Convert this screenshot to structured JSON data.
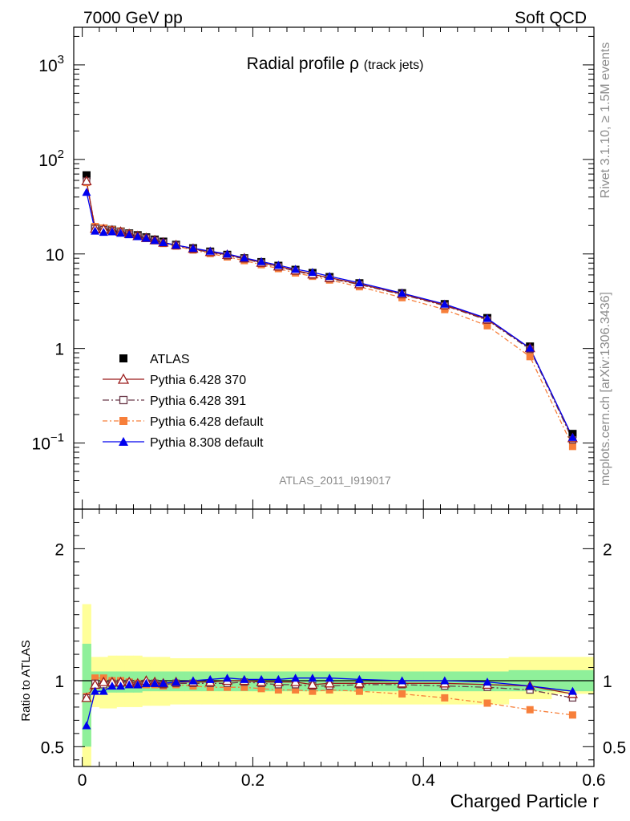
{
  "header": {
    "left": "7000 GeV pp",
    "right": "Soft QCD"
  },
  "side_text": {
    "rivet": "Rivet 3.1.10, ≥ 1.5M events",
    "mcplots": "mcplots.cern.ch [arXiv:1306.3436]"
  },
  "watermark": "ATLAS_2011_I919017",
  "colors": {
    "atlas": "#000000",
    "p370": "#9b1b1b",
    "p391": "#6b3a4a",
    "pdefault": "#f77f3a",
    "p8": "#0000ee",
    "band_inner": "#8ff09a",
    "band_outer": "#ffff99"
  },
  "chart_data": [
    {
      "type": "line",
      "title": "Radial profile",
      "title_symbol": "ρ",
      "title_suffix": "(track jets)",
      "yscale": "log",
      "ylim": [
        0.02,
        2500
      ],
      "xlim": [
        -0.01,
        0.6
      ],
      "ytick_labels": [
        {
          "value": 1000,
          "mant": "10",
          "exp": "3"
        },
        {
          "value": 100,
          "mant": "10",
          "exp": "2"
        },
        {
          "value": 10,
          "mant": "10",
          "exp": ""
        },
        {
          "value": 1,
          "mant": "1",
          "exp": ""
        },
        {
          "value": 0.1,
          "mant": "10",
          "exp": "−1"
        }
      ],
      "legend_position": "lower-left",
      "x": [
        0.005,
        0.015,
        0.025,
        0.035,
        0.045,
        0.055,
        0.065,
        0.075,
        0.085,
        0.095,
        0.11,
        0.13,
        0.15,
        0.17,
        0.19,
        0.21,
        0.23,
        0.25,
        0.27,
        0.29,
        0.325,
        0.375,
        0.425,
        0.475,
        0.525,
        0.575
      ],
      "series": [
        {
          "name": "ATLAS",
          "key": "atlas",
          "values": [
            68,
            19,
            18.5,
            18,
            17.3,
            16.5,
            15.8,
            15,
            14.2,
            13.5,
            12.5,
            11.5,
            10.6,
            9.8,
            9,
            8.2,
            7.5,
            6.8,
            6.3,
            5.7,
            4.9,
            3.85,
            2.95,
            2.1,
            1.05,
            0.125
          ]
        },
        {
          "name": "Pythia 6.428 370",
          "key": "p370",
          "values": [
            59,
            18.5,
            18.3,
            17.8,
            17.2,
            16.3,
            15.5,
            14.8,
            14,
            13.2,
            12.4,
            11.4,
            10.5,
            9.8,
            9,
            8.1,
            7.4,
            6.7,
            6.1,
            5.6,
            4.8,
            3.78,
            2.88,
            2.03,
            1.01,
            0.113
          ]
        },
        {
          "name": "Pythia 6.428 391",
          "key": "p391",
          "values": [
            59,
            18.6,
            18,
            17.6,
            17,
            16.2,
            15.4,
            14.7,
            13.9,
            13.1,
            12.3,
            11.2,
            10.4,
            9.6,
            8.9,
            8,
            7.3,
            6.6,
            6,
            5.5,
            4.75,
            3.72,
            2.84,
            2.0,
            0.98,
            0.108
          ]
        },
        {
          "name": "Pythia 6.428 default",
          "key": "pdefault",
          "values": [
            57,
            19.5,
            18.8,
            18,
            17.4,
            16.4,
            15.5,
            14.6,
            13.8,
            12.9,
            12.1,
            11,
            10.1,
            9.3,
            8.5,
            7.7,
            7,
            6.3,
            5.8,
            5.3,
            4.5,
            3.45,
            2.58,
            1.74,
            0.82,
            0.092
          ]
        },
        {
          "name": "Pythia 8.308 default",
          "key": "p8",
          "values": [
            45,
            17.5,
            17,
            17.2,
            16.6,
            16,
            15.3,
            14.7,
            13.9,
            13.2,
            12.4,
            11.5,
            10.7,
            10,
            9.1,
            8.3,
            7.6,
            6.9,
            6.4,
            5.8,
            4.95,
            3.85,
            2.95,
            2.08,
            1.01,
            0.115
          ]
        }
      ]
    },
    {
      "type": "line",
      "ylabel": "Ratio to ATLAS",
      "xlabel": "Charged Particle r",
      "ylim": [
        0.35,
        2.3
      ],
      "xlim": [
        -0.01,
        0.6
      ],
      "xticks": [
        0,
        0.2,
        0.4,
        0.6
      ],
      "xtick_labels": [
        "0",
        "0.2",
        "0.4",
        "0.6"
      ],
      "yticks": [
        0.5,
        1,
        2
      ],
      "ytick_labels": [
        "0.5",
        "1",
        "2"
      ],
      "band_inner": {
        "lower": [
          0.5,
          0.91,
          0.91,
          0.91,
          0.91,
          0.91,
          0.91,
          0.92,
          0.92,
          0.92,
          0.92,
          0.92,
          0.92,
          0.92,
          0.92,
          0.92,
          0.92,
          0.92,
          0.92,
          0.92,
          0.92,
          0.92,
          0.92,
          0.92,
          0.92,
          0.92
        ],
        "upper": [
          1.28,
          1.07,
          1.07,
          1.07,
          1.07,
          1.07,
          1.07,
          1.07,
          1.07,
          1.07,
          1.07,
          1.07,
          1.07,
          1.07,
          1.07,
          1.07,
          1.07,
          1.07,
          1.07,
          1.07,
          1.07,
          1.07,
          1.07,
          1.07,
          1.08,
          1.08
        ]
      },
      "band_outer": {
        "lower": [
          0.35,
          0.8,
          0.79,
          0.79,
          0.8,
          0.8,
          0.8,
          0.81,
          0.81,
          0.81,
          0.82,
          0.82,
          0.82,
          0.82,
          0.82,
          0.82,
          0.82,
          0.82,
          0.82,
          0.82,
          0.82,
          0.82,
          0.82,
          0.82,
          0.86,
          0.9
        ],
        "upper": [
          1.58,
          1.18,
          1.18,
          1.19,
          1.19,
          1.19,
          1.19,
          1.18,
          1.18,
          1.18,
          1.17,
          1.17,
          1.17,
          1.17,
          1.17,
          1.17,
          1.17,
          1.17,
          1.17,
          1.17,
          1.17,
          1.17,
          1.17,
          1.17,
          1.18,
          1.18
        ]
      },
      "series": [
        {
          "name": "Pythia 6.428 370",
          "key": "p370",
          "values": [
            0.87,
            0.97,
            0.99,
            0.99,
            0.99,
            0.99,
            0.98,
            1.0,
            0.99,
            0.98,
            0.99,
            0.99,
            0.99,
            1.0,
            1.0,
            0.99,
            0.99,
            0.99,
            0.97,
            0.98,
            0.98,
            0.98,
            0.98,
            0.97,
            0.96,
            0.9
          ]
        },
        {
          "name": "Pythia 6.428 391",
          "key": "p391",
          "values": [
            0.87,
            0.98,
            0.97,
            0.98,
            0.98,
            0.98,
            0.97,
            0.98,
            0.98,
            0.97,
            0.98,
            0.98,
            0.98,
            0.98,
            0.99,
            0.98,
            0.97,
            0.97,
            0.96,
            0.96,
            0.97,
            0.97,
            0.96,
            0.95,
            0.93,
            0.87
          ]
        },
        {
          "name": "Pythia 6.428 default",
          "key": "pdefault",
          "values": [
            0.88,
            1.02,
            1.02,
            1.0,
            1.0,
            0.99,
            0.98,
            0.97,
            0.97,
            0.96,
            0.97,
            0.96,
            0.95,
            0.95,
            0.95,
            0.94,
            0.93,
            0.93,
            0.92,
            0.93,
            0.92,
            0.9,
            0.87,
            0.83,
            0.78,
            0.74
          ]
        },
        {
          "name": "Pythia 8.308 default",
          "key": "p8",
          "values": [
            0.66,
            0.92,
            0.92,
            0.96,
            0.96,
            0.97,
            0.97,
            0.98,
            0.98,
            0.98,
            0.99,
            1.0,
            1.01,
            1.02,
            1.01,
            1.01,
            1.01,
            1.02,
            1.02,
            1.02,
            1.01,
            1.0,
            1.0,
            0.99,
            0.96,
            0.92
          ]
        }
      ]
    }
  ]
}
